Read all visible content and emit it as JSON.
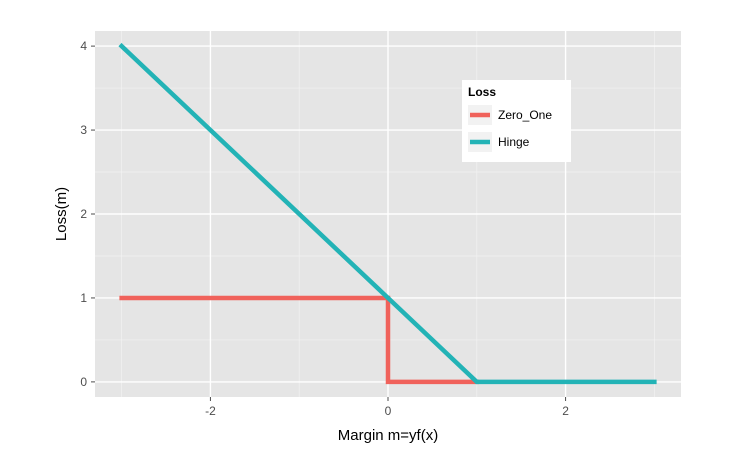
{
  "chart_data": {
    "type": "line",
    "title": "",
    "xlabel": "Margin m=yf(x)",
    "ylabel": "Loss(m)",
    "xlim": [
      -3.3,
      3.3
    ],
    "ylim": [
      -0.18,
      4.18
    ],
    "x_ticks": [
      -2,
      0,
      2
    ],
    "x_tick_labels": [
      "-2",
      "0",
      "2"
    ],
    "y_ticks": [
      0,
      1,
      2,
      3,
      4
    ],
    "y_tick_labels": [
      "0",
      "1",
      "2",
      "3",
      "4"
    ],
    "grid": true,
    "background": "#e5e5e5",
    "legend": {
      "title": "Loss",
      "placement": "top-right-inside"
    },
    "series": [
      {
        "name": "Zero_One",
        "color": "#f0625b",
        "points": [
          [
            -3,
            1
          ],
          [
            0,
            1
          ],
          [
            0,
            0
          ],
          [
            1,
            0
          ]
        ]
      },
      {
        "name": "Hinge",
        "color": "#23b3b6",
        "points": [
          [
            -3,
            4
          ],
          [
            1,
            0
          ],
          [
            3,
            0
          ]
        ]
      }
    ]
  }
}
